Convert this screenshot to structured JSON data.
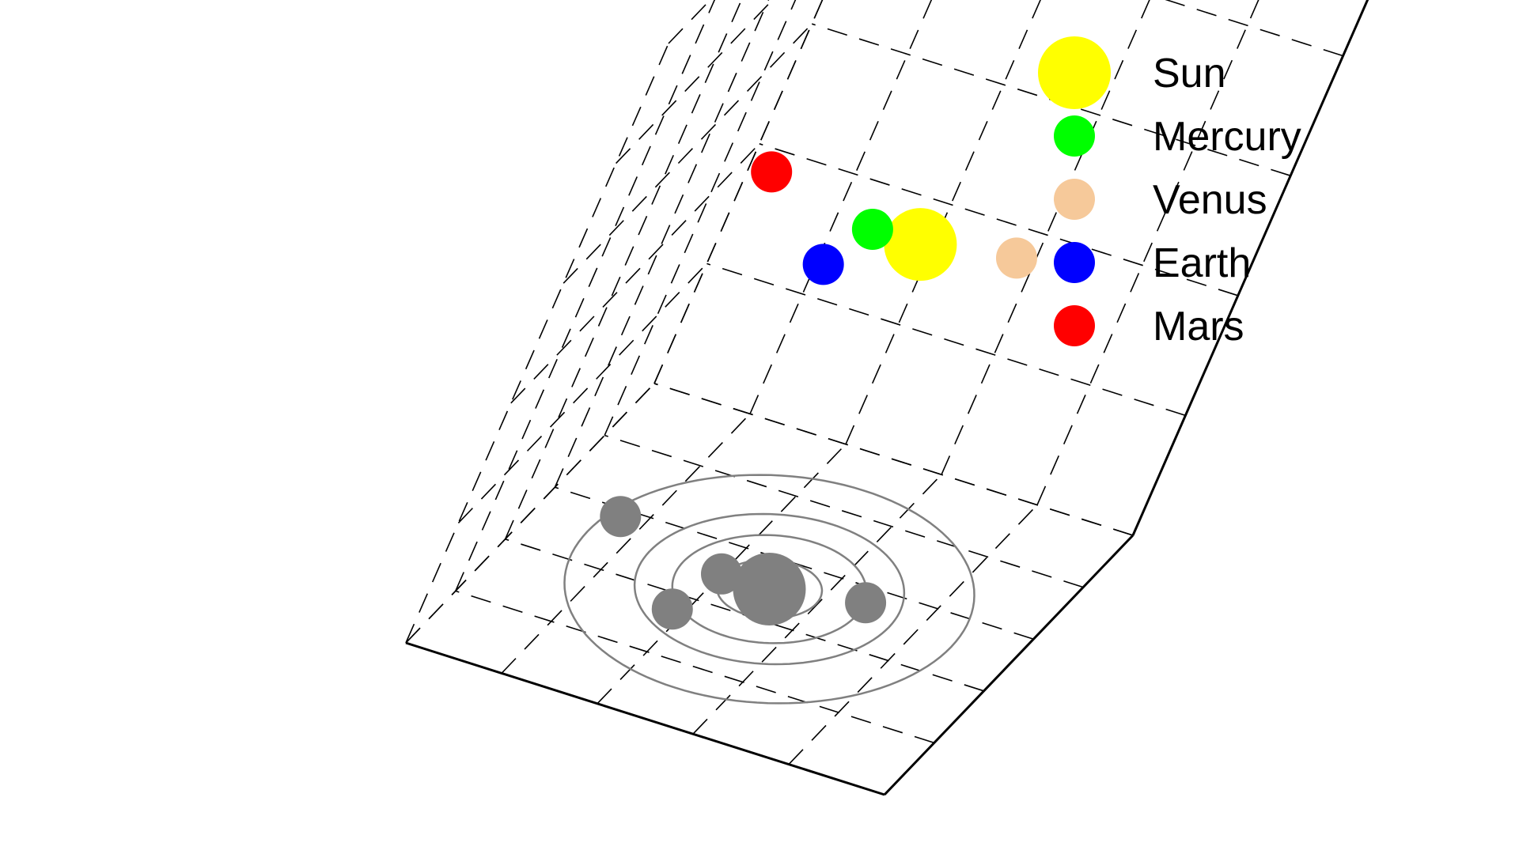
{
  "chart_data": {
    "type": "scatter",
    "projection": "3d",
    "grid": true,
    "legend_position": "top-right",
    "axis_labels_shown": false,
    "tick_labels_shown": false,
    "shadow_color": "#808080",
    "orbit_color": "#808080",
    "xlim": [
      -2,
      2
    ],
    "ylim": [
      -2,
      2
    ],
    "zlim": [
      -2,
      2
    ],
    "orbits": [
      {
        "name": "Mercury orbit",
        "radius": 0.39
      },
      {
        "name": "Venus orbit",
        "radius": 0.72
      },
      {
        "name": "Earth orbit",
        "radius": 1.0
      },
      {
        "name": "Mars orbit",
        "radius": 1.52
      }
    ],
    "series": [
      {
        "name": "Sun",
        "color": "#ffff00",
        "marker_size": 46,
        "x": 0.0,
        "y": 0.0,
        "z": 0.3
      },
      {
        "name": "Mercury",
        "color": "#00ff00",
        "marker_size": 26,
        "x": 0.4,
        "y": 0.0,
        "z": 0.3
      },
      {
        "name": "Venus",
        "color": "#f6c99a",
        "marker_size": 26,
        "x": -0.7,
        "y": 0.2,
        "z": 0.3
      },
      {
        "name": "Earth",
        "color": "#0000ff",
        "marker_size": 26,
        "x": 0.5,
        "y": -0.6,
        "z": 0.3
      },
      {
        "name": "Mars",
        "color": "#ff0000",
        "marker_size": 26,
        "x": 1.4,
        "y": 0.3,
        "z": 0.3
      }
    ]
  }
}
